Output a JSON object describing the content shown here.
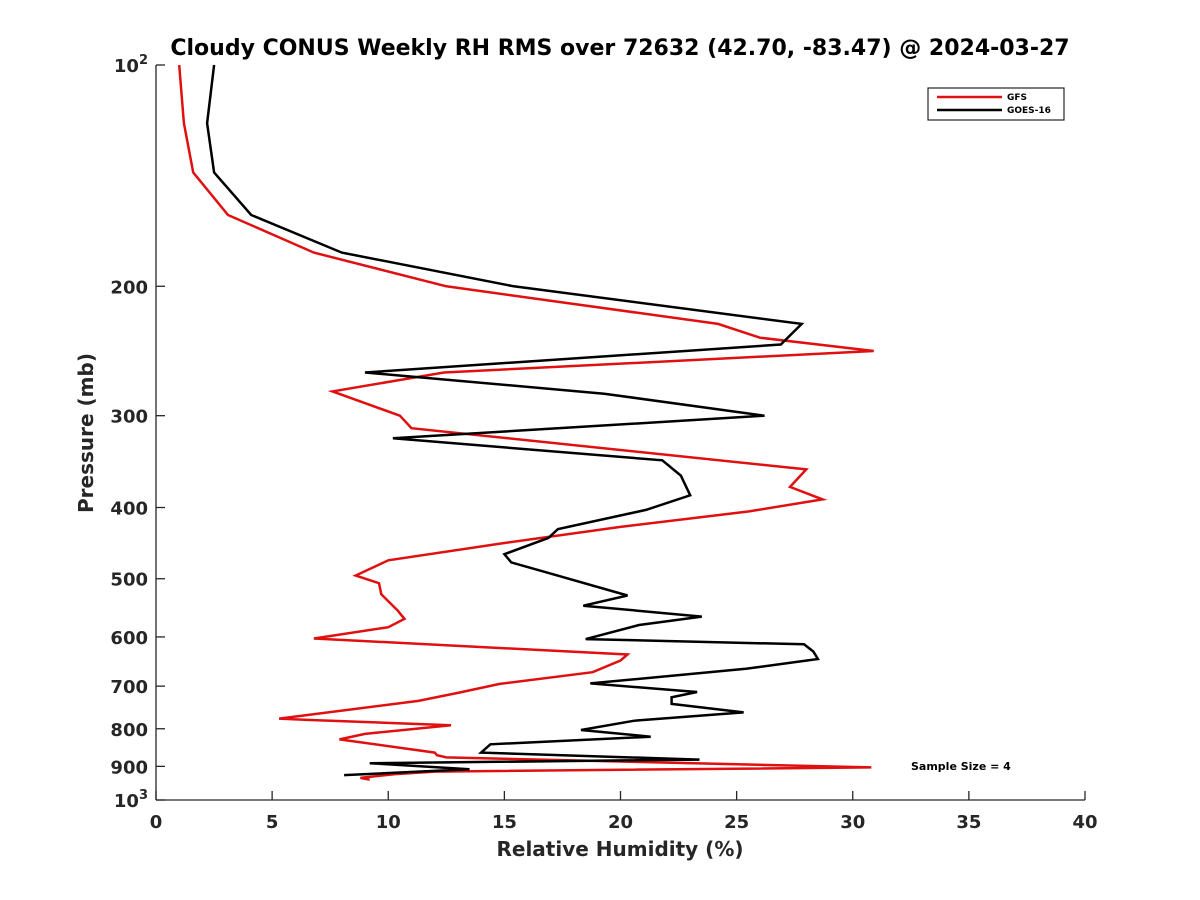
{
  "chart_data": {
    "type": "line",
    "title": "Cloudy CONUS Weekly RH RMS over 72632 (42.70, -83.47) @ 2024-03-27",
    "xlabel": "Relative Humidity (%)",
    "ylabel": "Pressure (mb)",
    "xlim": [
      0,
      40
    ],
    "ylim": [
      100,
      1000
    ],
    "y_scale": "log",
    "y_reversed": true,
    "xticks": [
      0,
      5,
      10,
      15,
      20,
      25,
      30,
      35,
      40
    ],
    "yticks": [
      {
        "value": 100,
        "base": "10",
        "exp": "2"
      },
      {
        "value": 200,
        "label": "200"
      },
      {
        "value": 300,
        "label": "300"
      },
      {
        "value": 400,
        "label": "400"
      },
      {
        "value": 500,
        "label": "500"
      },
      {
        "value": 600,
        "label": "600"
      },
      {
        "value": 700,
        "label": "700"
      },
      {
        "value": 800,
        "label": "800"
      },
      {
        "value": 900,
        "label": "900"
      },
      {
        "value": 1000,
        "base": "10",
        "exp": "3"
      }
    ],
    "grid": false,
    "legend_position": "top-right",
    "annotation": "Sample Size = 4",
    "series": [
      {
        "name": "GFS",
        "color": "#e01010",
        "points": [
          [
            1.0,
            100
          ],
          [
            1.2,
            120
          ],
          [
            1.6,
            140
          ],
          [
            3.1,
            160
          ],
          [
            6.8,
            180
          ],
          [
            12.5,
            200
          ],
          [
            24.2,
            225
          ],
          [
            26.0,
            235
          ],
          [
            30.9,
            245
          ],
          [
            12.4,
            262
          ],
          [
            7.6,
            278
          ],
          [
            10.5,
            300
          ],
          [
            11.0,
            312
          ],
          [
            28.0,
            355
          ],
          [
            27.3,
            375
          ],
          [
            28.7,
            390
          ],
          [
            25.5,
            405
          ],
          [
            20.0,
            425
          ],
          [
            15.0,
            447
          ],
          [
            10.0,
            472
          ],
          [
            8.6,
            495
          ],
          [
            9.6,
            507
          ],
          [
            9.7,
            525
          ],
          [
            10.4,
            552
          ],
          [
            10.7,
            567
          ],
          [
            10.0,
            582
          ],
          [
            6.8,
            603
          ],
          [
            20.3,
            634
          ],
          [
            20.0,
            646
          ],
          [
            18.8,
            670
          ],
          [
            14.8,
            695
          ],
          [
            13.0,
            715
          ],
          [
            11.3,
            733
          ],
          [
            5.3,
            775
          ],
          [
            6.5,
            778
          ],
          [
            12.7,
            791
          ],
          [
            9.0,
            813
          ],
          [
            7.9,
            827
          ],
          [
            12.0,
            862
          ],
          [
            12.1,
            869
          ],
          [
            12.5,
            875
          ],
          [
            30.8,
            903
          ],
          [
            12.0,
            915
          ],
          [
            10.3,
            922
          ],
          [
            8.8,
            933
          ],
          [
            9.2,
            938
          ]
        ]
      },
      {
        "name": "GOES-16",
        "color": "#000000",
        "points": [
          [
            2.5,
            100
          ],
          [
            2.2,
            120
          ],
          [
            2.5,
            140
          ],
          [
            4.1,
            160
          ],
          [
            8.0,
            180
          ],
          [
            15.4,
            200
          ],
          [
            27.8,
            225
          ],
          [
            26.9,
            240
          ],
          [
            9.0,
            262
          ],
          [
            19.3,
            280
          ],
          [
            26.2,
            300
          ],
          [
            10.2,
            322
          ],
          [
            21.8,
            345
          ],
          [
            22.6,
            362
          ],
          [
            23.0,
            385
          ],
          [
            21.1,
            403
          ],
          [
            17.3,
            428
          ],
          [
            16.9,
            440
          ],
          [
            15.0,
            463
          ],
          [
            15.3,
            475
          ],
          [
            16.8,
            490
          ],
          [
            20.3,
            527
          ],
          [
            18.4,
            544
          ],
          [
            23.5,
            563
          ],
          [
            20.8,
            578
          ],
          [
            18.5,
            604
          ],
          [
            27.9,
            614
          ],
          [
            28.3,
            628
          ],
          [
            28.5,
            643
          ],
          [
            25.4,
            663
          ],
          [
            18.7,
            694
          ],
          [
            23.3,
            713
          ],
          [
            22.2,
            725
          ],
          [
            22.2,
            740
          ],
          [
            25.3,
            760
          ],
          [
            20.6,
            780
          ],
          [
            18.3,
            803
          ],
          [
            21.3,
            820
          ],
          [
            14.4,
            840
          ],
          [
            14.0,
            862
          ],
          [
            23.4,
            881
          ],
          [
            9.2,
            891
          ],
          [
            13.5,
            908
          ],
          [
            8.1,
            925
          ]
        ]
      }
    ]
  }
}
